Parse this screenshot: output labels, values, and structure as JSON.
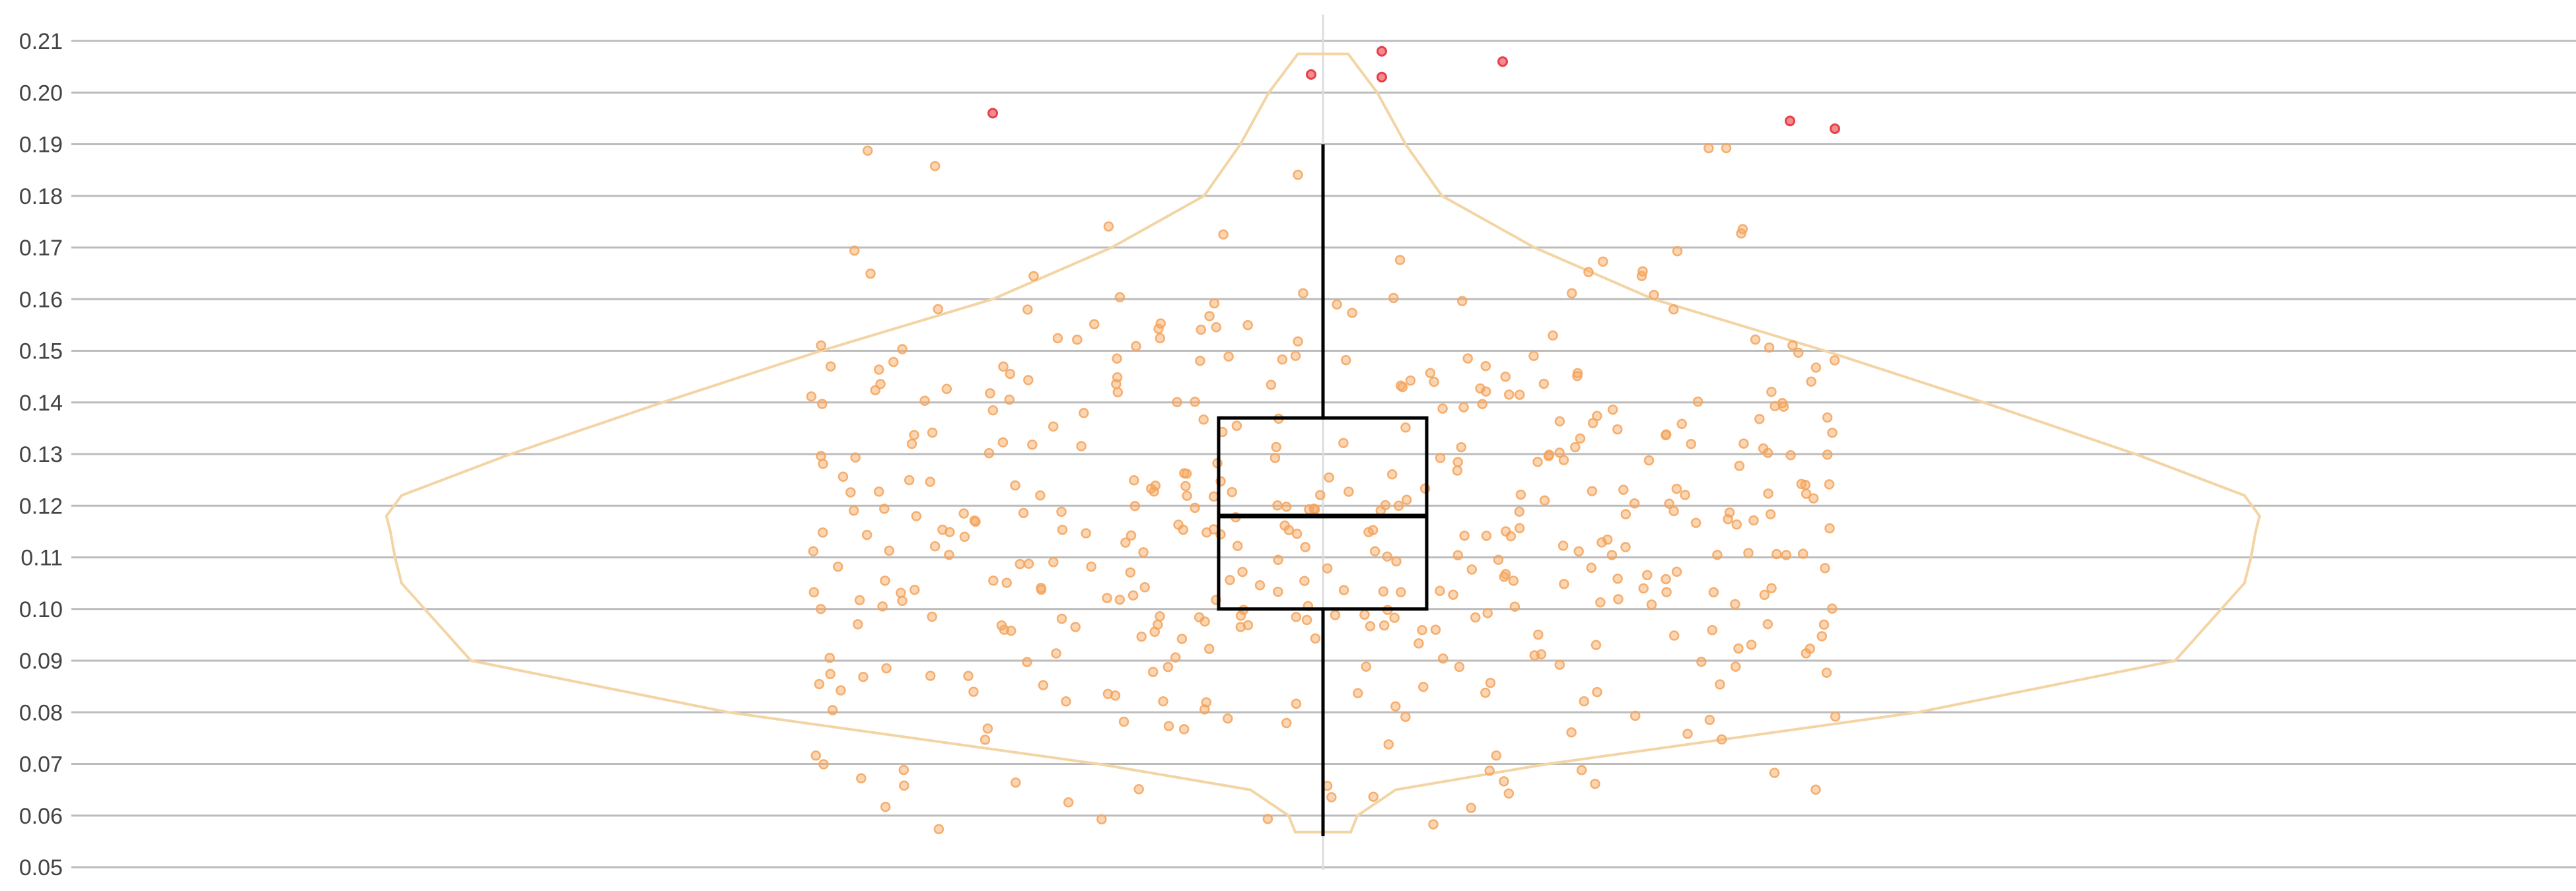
{
  "chart_data": {
    "type": "violin-box-scatter",
    "ylim": [
      0.05,
      0.21
    ],
    "y_ticks": [
      "0.05",
      "0.06",
      "0.07",
      "0.08",
      "0.09",
      "0.10",
      "0.11",
      "0.12",
      "0.13",
      "0.14",
      "0.15",
      "0.16",
      "0.17",
      "0.18",
      "0.19",
      "0.20",
      "0.21"
    ],
    "grid": "horizontal",
    "box": {
      "q1": 0.1,
      "median": 0.118,
      "q3": 0.137,
      "whisker_low": 0.056,
      "whisker_high": 0.19
    },
    "outliers": [
      0.208,
      0.2035,
      0.203,
      0.206,
      0.196,
      0.1945,
      0.193
    ],
    "jitter_points": {
      "count": 450,
      "y_min": 0.057,
      "y_max": 0.19,
      "center": 0.118
    },
    "colors": {
      "violin": "#f3d4a4",
      "points": "#f5a35a",
      "outliers": "#e8404a",
      "box": "#000000",
      "grid": "#bcbcbc"
    }
  }
}
